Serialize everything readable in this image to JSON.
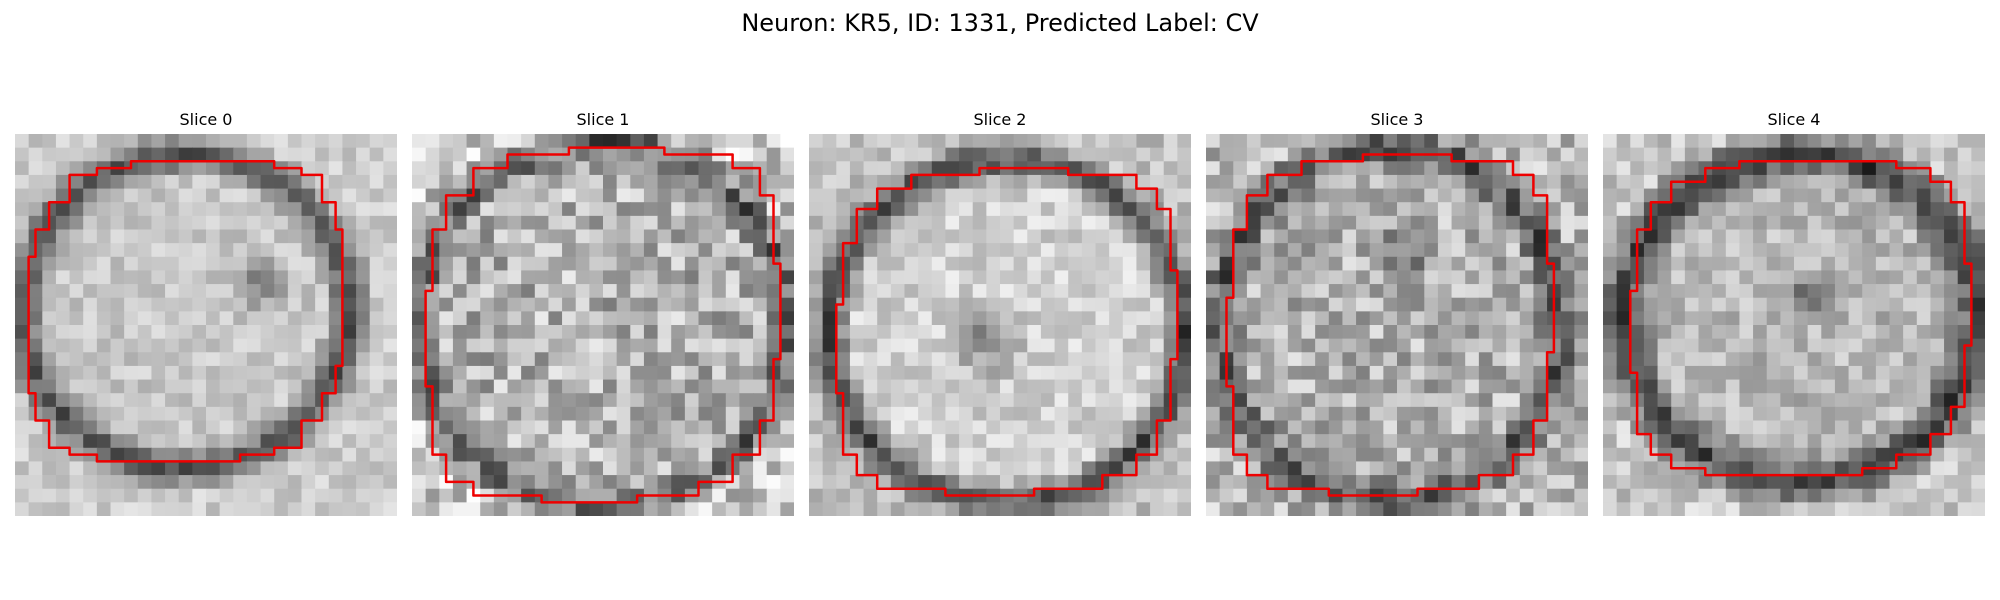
{
  "figure": {
    "title": "Neuron: KR5, ID: 1331, Predicted Label: CV"
  },
  "slices": [
    {
      "title": "Slice 0"
    },
    {
      "title": "Slice 1"
    },
    {
      "title": "Slice 2"
    },
    {
      "title": "Slice 3"
    },
    {
      "title": "Slice 4"
    }
  ],
  "colors": {
    "contour": "#ee0000",
    "background": "#ffffff"
  },
  "colormap": "gray",
  "grid_size": 28
}
